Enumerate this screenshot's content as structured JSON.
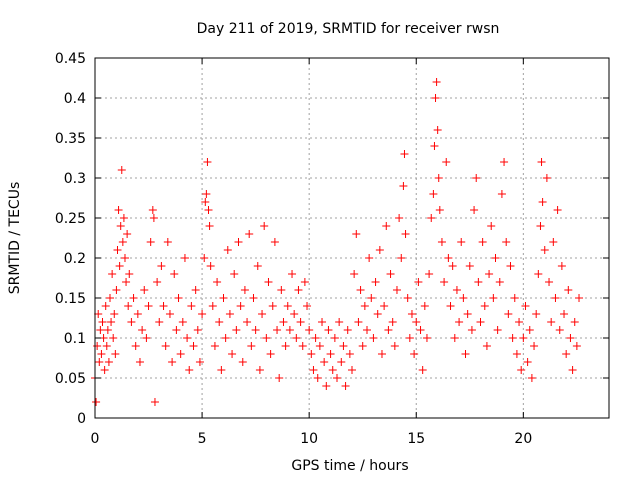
{
  "chart_data": {
    "type": "scatter",
    "title": "Day 211 of 2019, SRMTID for receiver rwsn",
    "xlabel": "GPS time / hours",
    "ylabel": "SRMTID / TECUs",
    "xlim": [
      0,
      24
    ],
    "ylim": [
      0,
      0.45
    ],
    "xticks": [
      "0",
      "5",
      "10",
      "15",
      "20"
    ],
    "yticks": [
      "0",
      "0.05",
      "0.1",
      "0.15",
      "0.2",
      "0.25",
      "0.3",
      "0.35",
      "0.4",
      "0.45"
    ],
    "grid": true,
    "marker": "+",
    "color": "#ff0000",
    "series": [
      {
        "name": "SRMTID",
        "points": [
          [
            0.0,
            0.05
          ],
          [
            0.05,
            0.02
          ],
          [
            0.1,
            0.09
          ],
          [
            0.15,
            0.13
          ],
          [
            0.2,
            0.07
          ],
          [
            0.25,
            0.11
          ],
          [
            0.3,
            0.08
          ],
          [
            0.35,
            0.12
          ],
          [
            0.4,
            0.1
          ],
          [
            0.45,
            0.06
          ],
          [
            0.5,
            0.14
          ],
          [
            0.55,
            0.09
          ],
          [
            0.6,
            0.11
          ],
          [
            0.65,
            0.07
          ],
          [
            0.7,
            0.15
          ],
          [
            0.75,
            0.12
          ],
          [
            0.8,
            0.18
          ],
          [
            0.85,
            0.1
          ],
          [
            0.9,
            0.13
          ],
          [
            0.95,
            0.08
          ],
          [
            1.0,
            0.16
          ],
          [
            1.05,
            0.21
          ],
          [
            1.1,
            0.26
          ],
          [
            1.15,
            0.19
          ],
          [
            1.2,
            0.24
          ],
          [
            1.25,
            0.31
          ],
          [
            1.3,
            0.22
          ],
          [
            1.35,
            0.25
          ],
          [
            1.4,
            0.2
          ],
          [
            1.45,
            0.17
          ],
          [
            1.5,
            0.23
          ],
          [
            1.55,
            0.14
          ],
          [
            1.6,
            0.18
          ],
          [
            1.7,
            0.12
          ],
          [
            1.8,
            0.15
          ],
          [
            1.9,
            0.09
          ],
          [
            2.0,
            0.13
          ],
          [
            2.1,
            0.07
          ],
          [
            2.2,
            0.11
          ],
          [
            2.3,
            0.16
          ],
          [
            2.4,
            0.1
          ],
          [
            2.5,
            0.14
          ],
          [
            2.6,
            0.22
          ],
          [
            2.7,
            0.26
          ],
          [
            2.75,
            0.25
          ],
          [
            2.8,
            0.02
          ],
          [
            2.9,
            0.17
          ],
          [
            3.0,
            0.12
          ],
          [
            3.1,
            0.19
          ],
          [
            3.2,
            0.14
          ],
          [
            3.3,
            0.09
          ],
          [
            3.4,
            0.22
          ],
          [
            3.5,
            0.13
          ],
          [
            3.6,
            0.07
          ],
          [
            3.7,
            0.18
          ],
          [
            3.8,
            0.11
          ],
          [
            3.9,
            0.15
          ],
          [
            4.0,
            0.08
          ],
          [
            4.1,
            0.12
          ],
          [
            4.2,
            0.2
          ],
          [
            4.3,
            0.1
          ],
          [
            4.4,
            0.06
          ],
          [
            4.5,
            0.14
          ],
          [
            4.6,
            0.09
          ],
          [
            4.7,
            0.16
          ],
          [
            4.8,
            0.11
          ],
          [
            4.9,
            0.07
          ],
          [
            5.0,
            0.13
          ],
          [
            5.1,
            0.2
          ],
          [
            5.15,
            0.27
          ],
          [
            5.2,
            0.28
          ],
          [
            5.25,
            0.32
          ],
          [
            5.3,
            0.26
          ],
          [
            5.35,
            0.24
          ],
          [
            5.4,
            0.19
          ],
          [
            5.5,
            0.14
          ],
          [
            5.6,
            0.09
          ],
          [
            5.7,
            0.17
          ],
          [
            5.8,
            0.12
          ],
          [
            5.9,
            0.06
          ],
          [
            6.0,
            0.15
          ],
          [
            6.1,
            0.1
          ],
          [
            6.2,
            0.21
          ],
          [
            6.3,
            0.13
          ],
          [
            6.4,
            0.08
          ],
          [
            6.5,
            0.18
          ],
          [
            6.6,
            0.11
          ],
          [
            6.7,
            0.22
          ],
          [
            6.8,
            0.14
          ],
          [
            6.9,
            0.07
          ],
          [
            7.0,
            0.16
          ],
          [
            7.1,
            0.12
          ],
          [
            7.2,
            0.23
          ],
          [
            7.3,
            0.09
          ],
          [
            7.4,
            0.15
          ],
          [
            7.5,
            0.11
          ],
          [
            7.6,
            0.19
          ],
          [
            7.7,
            0.06
          ],
          [
            7.8,
            0.13
          ],
          [
            7.9,
            0.24
          ],
          [
            8.0,
            0.1
          ],
          [
            8.1,
            0.17
          ],
          [
            8.2,
            0.08
          ],
          [
            8.3,
            0.14
          ],
          [
            8.4,
            0.22
          ],
          [
            8.5,
            0.11
          ],
          [
            8.6,
            0.05
          ],
          [
            8.7,
            0.16
          ],
          [
            8.8,
            0.12
          ],
          [
            8.9,
            0.09
          ],
          [
            9.0,
            0.14
          ],
          [
            9.1,
            0.11
          ],
          [
            9.2,
            0.18
          ],
          [
            9.3,
            0.13
          ],
          [
            9.4,
            0.1
          ],
          [
            9.5,
            0.16
          ],
          [
            9.6,
            0.12
          ],
          [
            9.7,
            0.09
          ],
          [
            9.8,
            0.17
          ],
          [
            9.9,
            0.14
          ],
          [
            10.0,
            0.11
          ],
          [
            10.1,
            0.08
          ],
          [
            10.2,
            0.06
          ],
          [
            10.3,
            0.1
          ],
          [
            10.4,
            0.05
          ],
          [
            10.5,
            0.09
          ],
          [
            10.6,
            0.12
          ],
          [
            10.7,
            0.07
          ],
          [
            10.8,
            0.04
          ],
          [
            10.9,
            0.11
          ],
          [
            11.0,
            0.08
          ],
          [
            11.1,
            0.06
          ],
          [
            11.2,
            0.1
          ],
          [
            11.3,
            0.05
          ],
          [
            11.4,
            0.12
          ],
          [
            11.5,
            0.07
          ],
          [
            11.6,
            0.09
          ],
          [
            11.7,
            0.04
          ],
          [
            11.8,
            0.11
          ],
          [
            11.9,
            0.08
          ],
          [
            12.0,
            0.06
          ],
          [
            12.1,
            0.18
          ],
          [
            12.2,
            0.23
          ],
          [
            12.3,
            0.12
          ],
          [
            12.4,
            0.16
          ],
          [
            12.5,
            0.09
          ],
          [
            12.6,
            0.14
          ],
          [
            12.7,
            0.11
          ],
          [
            12.8,
            0.2
          ],
          [
            12.9,
            0.15
          ],
          [
            13.0,
            0.1
          ],
          [
            13.1,
            0.17
          ],
          [
            13.2,
            0.13
          ],
          [
            13.3,
            0.21
          ],
          [
            13.4,
            0.08
          ],
          [
            13.5,
            0.14
          ],
          [
            13.6,
            0.24
          ],
          [
            13.7,
            0.11
          ],
          [
            13.8,
            0.18
          ],
          [
            13.9,
            0.12
          ],
          [
            14.0,
            0.09
          ],
          [
            14.1,
            0.16
          ],
          [
            14.2,
            0.25
          ],
          [
            14.3,
            0.2
          ],
          [
            14.4,
            0.29
          ],
          [
            14.45,
            0.33
          ],
          [
            14.5,
            0.23
          ],
          [
            14.6,
            0.15
          ],
          [
            14.7,
            0.1
          ],
          [
            14.8,
            0.13
          ],
          [
            14.9,
            0.08
          ],
          [
            15.0,
            0.12
          ],
          [
            15.1,
            0.17
          ],
          [
            15.2,
            0.11
          ],
          [
            15.3,
            0.06
          ],
          [
            15.4,
            0.14
          ],
          [
            15.5,
            0.1
          ],
          [
            15.6,
            0.18
          ],
          [
            15.7,
            0.25
          ],
          [
            15.8,
            0.28
          ],
          [
            15.85,
            0.34
          ],
          [
            15.9,
            0.4
          ],
          [
            15.95,
            0.42
          ],
          [
            16.0,
            0.36
          ],
          [
            16.05,
            0.3
          ],
          [
            16.1,
            0.26
          ],
          [
            16.2,
            0.22
          ],
          [
            16.3,
            0.17
          ],
          [
            16.4,
            0.32
          ],
          [
            16.5,
            0.2
          ],
          [
            16.6,
            0.14
          ],
          [
            16.7,
            0.19
          ],
          [
            16.8,
            0.1
          ],
          [
            16.9,
            0.16
          ],
          [
            17.0,
            0.12
          ],
          [
            17.1,
            0.22
          ],
          [
            17.2,
            0.15
          ],
          [
            17.3,
            0.08
          ],
          [
            17.4,
            0.13
          ],
          [
            17.5,
            0.19
          ],
          [
            17.6,
            0.11
          ],
          [
            17.7,
            0.26
          ],
          [
            17.8,
            0.3
          ],
          [
            17.9,
            0.17
          ],
          [
            18.0,
            0.12
          ],
          [
            18.1,
            0.22
          ],
          [
            18.2,
            0.14
          ],
          [
            18.3,
            0.09
          ],
          [
            18.4,
            0.18
          ],
          [
            18.5,
            0.24
          ],
          [
            18.6,
            0.15
          ],
          [
            18.7,
            0.2
          ],
          [
            18.8,
            0.11
          ],
          [
            18.9,
            0.17
          ],
          [
            19.0,
            0.28
          ],
          [
            19.1,
            0.32
          ],
          [
            19.2,
            0.22
          ],
          [
            19.3,
            0.13
          ],
          [
            19.4,
            0.19
          ],
          [
            19.5,
            0.1
          ],
          [
            19.6,
            0.15
          ],
          [
            19.7,
            0.08
          ],
          [
            19.8,
            0.12
          ],
          [
            19.9,
            0.06
          ],
          [
            20.0,
            0.1
          ],
          [
            20.1,
            0.14
          ],
          [
            20.2,
            0.07
          ],
          [
            20.3,
            0.11
          ],
          [
            20.4,
            0.05
          ],
          [
            20.5,
            0.09
          ],
          [
            20.6,
            0.13
          ],
          [
            20.7,
            0.18
          ],
          [
            20.8,
            0.24
          ],
          [
            20.85,
            0.32
          ],
          [
            20.9,
            0.27
          ],
          [
            21.0,
            0.21
          ],
          [
            21.1,
            0.3
          ],
          [
            21.2,
            0.17
          ],
          [
            21.3,
            0.12
          ],
          [
            21.4,
            0.22
          ],
          [
            21.5,
            0.15
          ],
          [
            21.6,
            0.26
          ],
          [
            21.7,
            0.11
          ],
          [
            21.8,
            0.19
          ],
          [
            21.9,
            0.13
          ],
          [
            22.0,
            0.08
          ],
          [
            22.1,
            0.16
          ],
          [
            22.2,
            0.1
          ],
          [
            22.3,
            0.06
          ],
          [
            22.4,
            0.12
          ],
          [
            22.5,
            0.09
          ],
          [
            22.6,
            0.15
          ]
        ]
      }
    ]
  }
}
